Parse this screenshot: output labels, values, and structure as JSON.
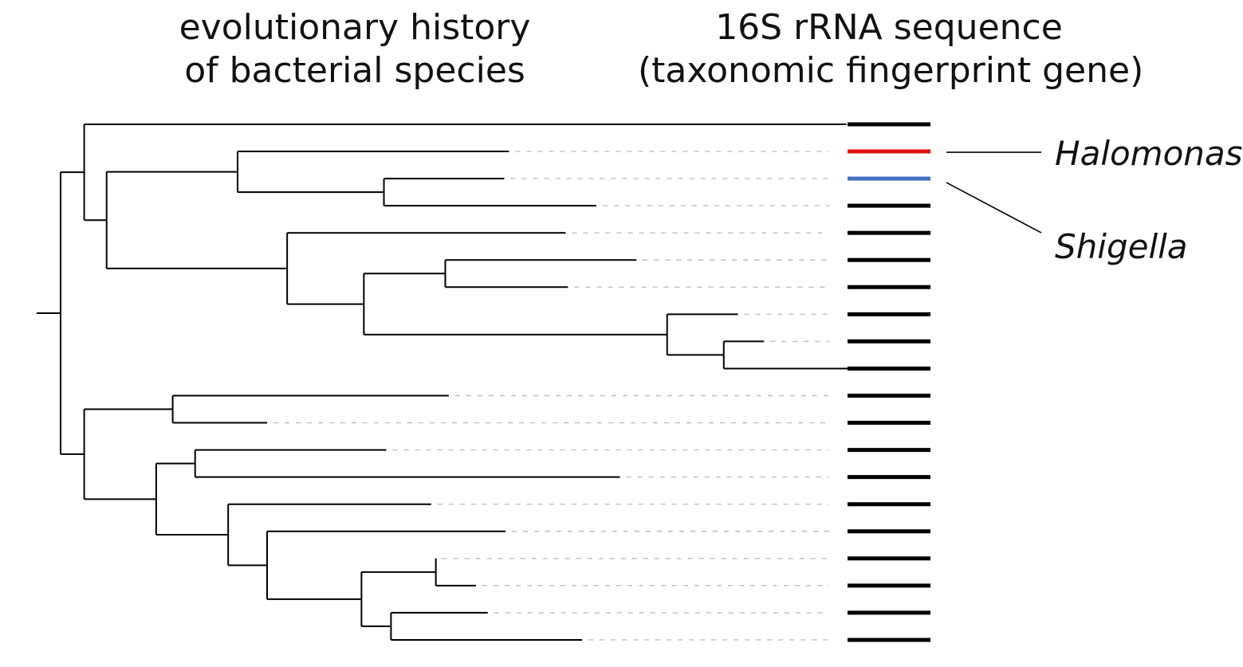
{
  "headings": {
    "tree_line1": "evolutionary history",
    "tree_line2": "of bacterial species",
    "gene_line1": "16S rRNA sequence",
    "gene_line2": "(taxonomic fingerprint gene)"
  },
  "highlights": {
    "halomonas": {
      "name": "Halomonas",
      "color": "#e31010",
      "leaf_index": 1
    },
    "shigella": {
      "name": "Shigella",
      "color": "#4472c4",
      "leaf_index": 2
    }
  },
  "colors": {
    "branch": "#000000",
    "dash": "#bdbdbd",
    "bar_default": "#000000"
  },
  "tree": {
    "children": [
      {
        "children": [
          {
            "branch": 32.3
          },
          {
            "children": [
              {
                "children": [
                  {
                    "branch": 11.5
                  },
                  {
                    "children": [
                      {
                        "branch": 5.1
                      },
                      {
                        "branch": 9.0
                      }
                    ]
                  }
                ]
              },
              {
                "children": [
                  {
                    "branch": 11.8
                  },
                  {
                    "children": [
                      {
                        "children": [
                          {
                            "branch": 8.1
                          },
                          {
                            "branch": 5.2
                          }
                        ]
                      },
                      {
                        "children": [
                          {
                            "branch": 3.0
                          },
                          {
                            "children": [
                              {
                                "branch": 1.7
                              },
                              {
                                "branch": 6.6
                              }
                            ]
                          }
                        ]
                      }
                    ]
                  }
                ]
              }
            ]
          }
        ]
      },
      {
        "children": [
          {
            "children": [
              {
                "branch": 11.7
              },
              {
                "branch": 4.0
              }
            ]
          },
          {
            "children": [
              {
                "children": [
                  {
                    "branch": 8.1
                  },
                  {
                    "branch": 18.0
                  }
                ]
              },
              {
                "children": [
                  {
                    "branch": 8.6
                  },
                  {
                    "children": [
                      {
                        "branch": 10.1
                      },
                      {
                        "children": [
                          {
                            "children": [
                              {
                                "branch": 0.0
                              },
                              {
                                "branch": 1.7
                              }
                            ]
                          },
                          {
                            "children": [
                              {
                                "branch": 4.1
                              },
                              {
                                "branch": 8.1
                              }
                            ]
                          }
                        ]
                      }
                    ]
                  }
                ]
              }
            ]
          }
        ]
      }
    ]
  }
}
